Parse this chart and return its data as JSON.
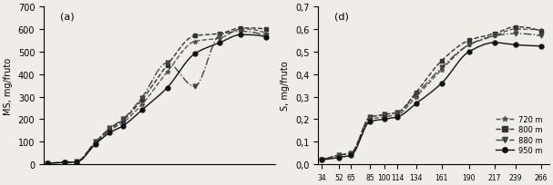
{
  "x_ticks": [
    34,
    52,
    65,
    85,
    100,
    114,
    134,
    161,
    190,
    217,
    239,
    266
  ],
  "panel_a": {
    "label": "(a)",
    "ylabel": "MS, mg/fruto",
    "ylim": [
      0,
      700
    ],
    "yticks": [
      0,
      100,
      200,
      300,
      400,
      500,
      600,
      700
    ],
    "series": {
      "720m": {
        "x": [
          34,
          52,
          65,
          85,
          100,
          114,
          134,
          161,
          190,
          217,
          239,
          266
        ],
        "y": [
          5,
          8,
          10,
          95,
          150,
          185,
          265,
          410,
          545,
          560,
          600,
          580
        ],
        "linestyle": "--",
        "marker": "*",
        "color": "#555555"
      },
      "800m": {
        "x": [
          34,
          52,
          65,
          85,
          100,
          114,
          134,
          161,
          190,
          217,
          239,
          266
        ],
        "y": [
          5,
          8,
          12,
          100,
          155,
          195,
          285,
          440,
          570,
          580,
          605,
          600
        ],
        "linestyle": "--",
        "marker": "s",
        "color": "#333333"
      },
      "880m": {
        "x": [
          34,
          52,
          65,
          85,
          100,
          114,
          134,
          161,
          190,
          217,
          239,
          266
        ],
        "y": [
          5,
          8,
          12,
          100,
          160,
          200,
          295,
          450,
          345,
          575,
          590,
          570
        ],
        "linestyle": "-.",
        "marker": "v",
        "color": "#444444"
      },
      "950m": {
        "x": [
          34,
          52,
          65,
          85,
          100,
          114,
          134,
          161,
          190,
          217,
          239,
          266
        ],
        "y": [
          5,
          8,
          10,
          90,
          140,
          170,
          240,
          340,
          490,
          540,
          575,
          565
        ],
        "linestyle": "-",
        "marker": "o",
        "color": "#111111"
      }
    }
  },
  "panel_d": {
    "label": "(d)",
    "ylabel": "S, mg/fruto",
    "ylim": [
      0,
      0.7
    ],
    "yticks": [
      0.0,
      0.1,
      0.2,
      0.3,
      0.4,
      0.5,
      0.6,
      0.7
    ],
    "series": {
      "720m": {
        "x": [
          34,
          52,
          65,
          85,
          100,
          114,
          134,
          161,
          190,
          217,
          239,
          266
        ],
        "y": [
          0.02,
          0.04,
          0.05,
          0.2,
          0.21,
          0.22,
          0.3,
          0.42,
          0.53,
          0.57,
          0.6,
          0.595
        ],
        "linestyle": "--",
        "marker": "*",
        "color": "#555555",
        "label": "720 m"
      },
      "800m": {
        "x": [
          34,
          52,
          65,
          85,
          100,
          114,
          134,
          161,
          190,
          217,
          239,
          266
        ],
        "y": [
          0.02,
          0.04,
          0.05,
          0.21,
          0.22,
          0.23,
          0.32,
          0.46,
          0.55,
          0.58,
          0.61,
          0.59
        ],
        "linestyle": "--",
        "marker": "s",
        "color": "#333333",
        "label": "800 m"
      },
      "880m": {
        "x": [
          34,
          52,
          65,
          85,
          100,
          114,
          134,
          161,
          190,
          217,
          239,
          266
        ],
        "y": [
          0.02,
          0.04,
          0.05,
          0.21,
          0.22,
          0.23,
          0.31,
          0.43,
          0.53,
          0.57,
          0.58,
          0.57
        ],
        "linestyle": "-.",
        "marker": "v",
        "color": "#444444",
        "label": "880 m"
      },
      "950m": {
        "x": [
          34,
          52,
          65,
          85,
          100,
          114,
          134,
          161,
          190,
          217,
          239,
          266
        ],
        "y": [
          0.02,
          0.03,
          0.04,
          0.19,
          0.2,
          0.21,
          0.27,
          0.36,
          0.5,
          0.54,
          0.53,
          0.525
        ],
        "linestyle": "-",
        "marker": "o",
        "color": "#111111",
        "label": "950 m"
      }
    }
  },
  "legend_labels": [
    "720 m",
    "800 m",
    "880 m",
    "950 m"
  ],
  "legend_linestyles": [
    "--",
    "--",
    "-.",
    "-"
  ],
  "legend_markers": [
    "*",
    "s",
    "v",
    "o"
  ],
  "background_color": "#f0ede8"
}
